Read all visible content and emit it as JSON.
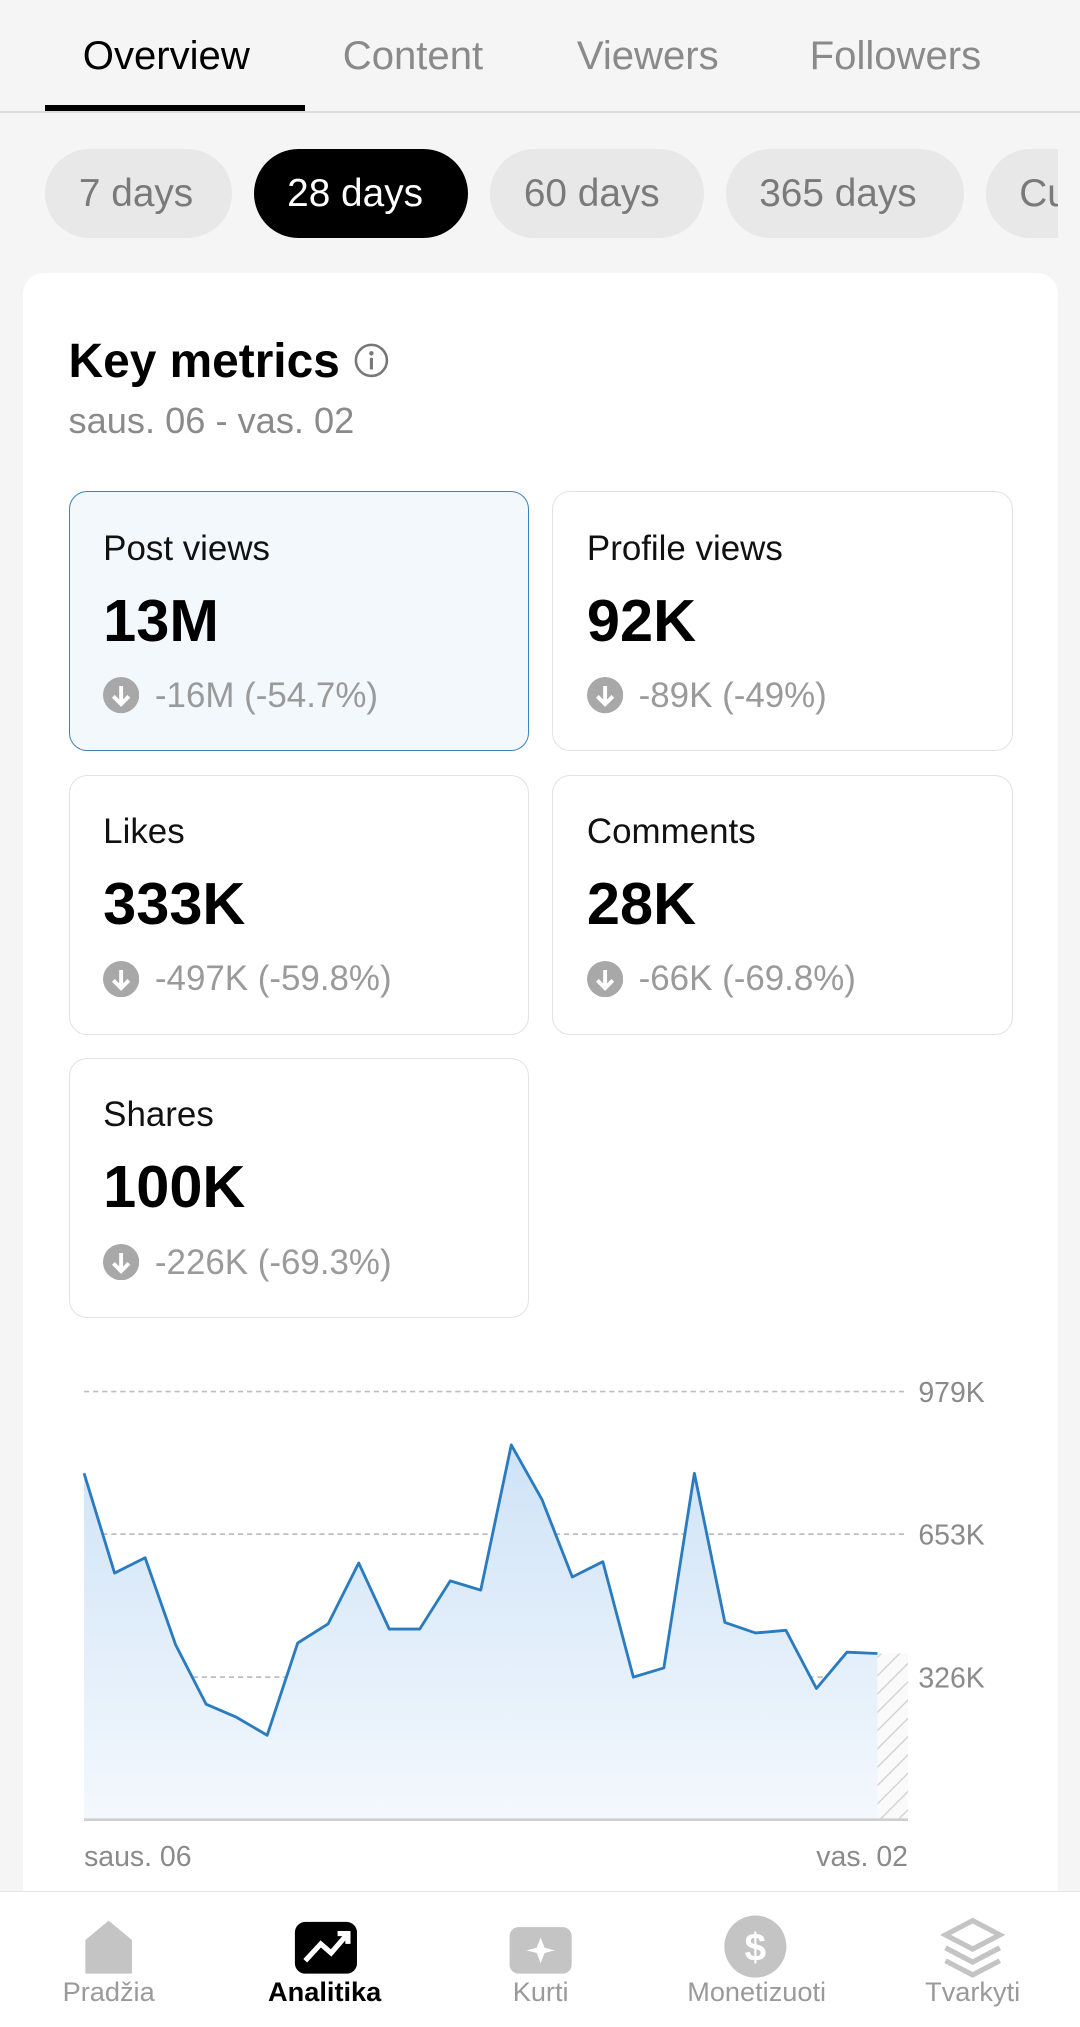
{
  "tabs": [
    "Overview",
    "Content",
    "Viewers",
    "Followers"
  ],
  "periods": [
    "7 days",
    "28 days",
    "60 days",
    "365 days",
    "Cu"
  ],
  "key_metrics": {
    "title": "Key metrics",
    "date_range": "saus. 06 - vas. 02"
  },
  "metrics": [
    {
      "label": "Post views",
      "value": "13M",
      "change": "-16M (-54.7%)"
    },
    {
      "label": "Profile views",
      "value": "92K",
      "change": "-89K (-49%)"
    },
    {
      "label": "Likes",
      "value": "333K",
      "change": "-497K (-59.8%)"
    },
    {
      "label": "Comments",
      "value": "28K",
      "change": "-66K (-69.8%)"
    },
    {
      "label": "Shares",
      "value": "100K",
      "change": "-226K (-69.3%)"
    }
  ],
  "chart_data": {
    "type": "line",
    "color": "#2a7bbf",
    "categories": [
      "saus. 06",
      null,
      null,
      null,
      null,
      null,
      null,
      null,
      null,
      null,
      null,
      null,
      null,
      null,
      null,
      null,
      null,
      null,
      null,
      null,
      null,
      null,
      null,
      null,
      null,
      null,
      null,
      "vas. 02"
    ],
    "values": [
      792000,
      564000,
      599000,
      400000,
      264000,
      234000,
      193000,
      404000,
      448000,
      587000,
      436000,
      436000,
      546000,
      525000,
      857000,
      733000,
      555000,
      590000,
      326000,
      347000,
      792000,
      451000,
      427000,
      433000,
      300000,
      383000,
      380000,
      null
    ],
    "ylim": [
      0,
      979000
    ],
    "yticks": [
      {
        "value": 326000,
        "label": "326K"
      },
      {
        "value": 653000,
        "label": "653K"
      },
      {
        "value": 979000,
        "label": "979K"
      }
    ],
    "grid": true
  },
  "nav": [
    "Pradžia",
    "Analitika",
    "Kurti",
    "Monetizuoti",
    "Tvarkyti"
  ]
}
